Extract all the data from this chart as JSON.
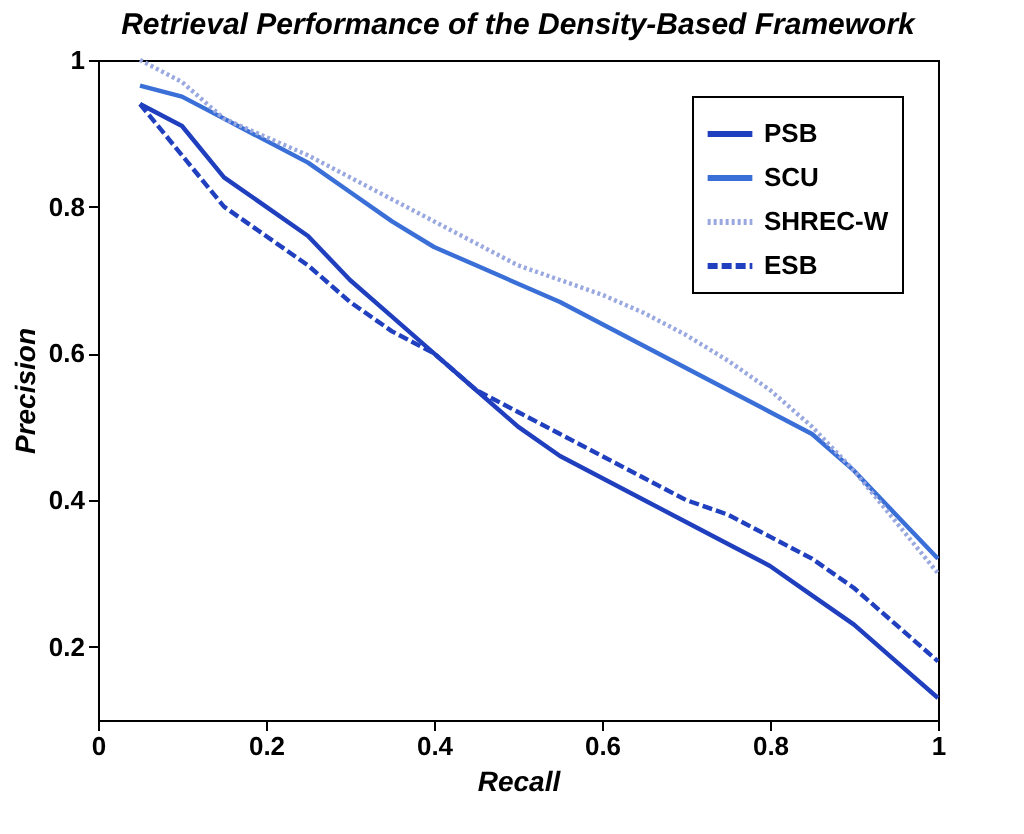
{
  "chart_data": {
    "type": "line",
    "title": "Retrieval Performance of the Density-Based Framework",
    "xlabel": "Recall",
    "ylabel": "Precision",
    "x": [
      0.05,
      0.1,
      0.15,
      0.2,
      0.25,
      0.3,
      0.35,
      0.4,
      0.45,
      0.5,
      0.55,
      0.6,
      0.65,
      0.7,
      0.75,
      0.8,
      0.85,
      0.9,
      0.95,
      1.0
    ],
    "series": [
      {
        "name": "PSB",
        "color": "#1f3fbf",
        "line_style": "solid",
        "values": [
          0.94,
          0.91,
          0.84,
          0.8,
          0.76,
          0.7,
          0.65,
          0.6,
          0.55,
          0.5,
          0.46,
          0.43,
          0.4,
          0.37,
          0.34,
          0.31,
          0.27,
          0.23,
          0.18,
          0.13
        ]
      },
      {
        "name": "SCU",
        "color": "#3a6fd8",
        "line_style": "solid",
        "values": [
          0.965,
          0.95,
          0.92,
          0.89,
          0.86,
          0.82,
          0.78,
          0.745,
          0.72,
          0.695,
          0.67,
          0.64,
          0.61,
          0.58,
          0.55,
          0.52,
          0.49,
          0.44,
          0.38,
          0.32
        ]
      },
      {
        "name": "SHREC-W",
        "color": "#9aa8e0",
        "line_style": "dotted",
        "values": [
          1.0,
          0.97,
          0.92,
          0.895,
          0.87,
          0.84,
          0.81,
          0.78,
          0.75,
          0.72,
          0.7,
          0.68,
          0.655,
          0.625,
          0.59,
          0.55,
          0.5,
          0.44,
          0.37,
          0.3
        ]
      },
      {
        "name": "ESB",
        "color": "#2040c0",
        "line_style": "dashed",
        "values": [
          0.94,
          0.87,
          0.8,
          0.76,
          0.72,
          0.67,
          0.63,
          0.6,
          0.55,
          0.52,
          0.49,
          0.46,
          0.43,
          0.4,
          0.38,
          0.35,
          0.32,
          0.28,
          0.23,
          0.18
        ]
      }
    ],
    "xlim": [
      0,
      1
    ],
    "xticks": [
      0,
      0.2,
      0.4,
      0.6,
      0.8,
      1
    ],
    "ylim": [
      0.1,
      1
    ],
    "yticks": [
      0.2,
      0.4,
      0.6,
      0.8,
      1
    ],
    "grid": false,
    "legend": "top right"
  }
}
